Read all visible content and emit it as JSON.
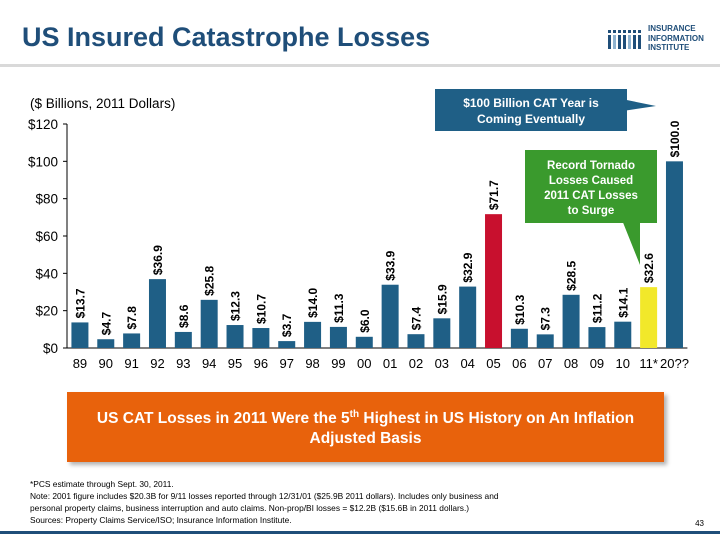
{
  "title": "US Insured Catastrophe Losses",
  "logo": {
    "line1": "INSURANCE",
    "line2": "INFORMATION",
    "line3": "INSTITUTE"
  },
  "colors": {
    "title": "#1f4e79",
    "bar": "#1f5f86",
    "highlight_bar": "#c8102e",
    "estimate_bar": "#f2e82a",
    "banner": "#e8620c",
    "callout": "#1f5f86",
    "green_callout": "#3a9a2d"
  },
  "chart_data": {
    "type": "bar",
    "subtitle": "($ Billions, 2011 Dollars)",
    "categories": [
      "89",
      "90",
      "91",
      "92",
      "93",
      "94",
      "95",
      "96",
      "97",
      "98",
      "99",
      "00",
      "01",
      "02",
      "03",
      "04",
      "05",
      "06",
      "07",
      "08",
      "09",
      "10",
      "11*",
      "20??"
    ],
    "values": [
      13.7,
      4.7,
      7.8,
      36.9,
      8.6,
      25.8,
      12.3,
      10.7,
      3.7,
      14.0,
      11.3,
      6.0,
      33.9,
      7.4,
      15.9,
      32.9,
      71.7,
      10.3,
      7.3,
      28.5,
      11.2,
      14.1,
      32.6,
      100.0
    ],
    "value_labels": [
      "$13.7",
      "$4.7",
      "$7.8",
      "$36.9",
      "$8.6",
      "$25.8",
      "$12.3",
      "$10.7",
      "$3.7",
      "$14.0",
      "$11.3",
      "$6.0",
      "$33.9",
      "$7.4",
      "$15.9",
      "$32.9",
      "$71.7",
      "$10.3",
      "$7.3",
      "$28.5",
      "$11.2",
      "$14.1",
      "$32.6",
      "$100.0"
    ],
    "highlight_index": 16,
    "estimate_index": 22,
    "ylim": [
      0,
      120
    ],
    "yticks": [
      0,
      20,
      40,
      60,
      80,
      100,
      120
    ],
    "ytick_labels": [
      "$0",
      "$20",
      "$40",
      "$60",
      "$80",
      "$100",
      "$120"
    ],
    "grid": false
  },
  "callout_blue": "$100 Billion CAT Year is Coming Eventually",
  "callout_green": "Record Tornado Losses Caused 2011 CAT Losses to Surge",
  "banner": {
    "part1": "US CAT Losses in 2011 Were the 5",
    "sup": "th",
    "part2": " Highest in US History on An Inflation Adjusted Basis"
  },
  "notes": [
    "*PCS estimate through Sept. 30, 2011.",
    "Note: 2001 figure includes $20.3B for 9/11 losses reported through 12/31/01 ($25.9B 2011 dollars). Includes only business and",
    "personal property claims, business interruption and auto claims. Non-prop/BI losses = $12.2B ($15.6B in 2011 dollars.)",
    "Sources: Property Claims Service/ISO; Insurance Information Institute."
  ],
  "page_number": "43"
}
